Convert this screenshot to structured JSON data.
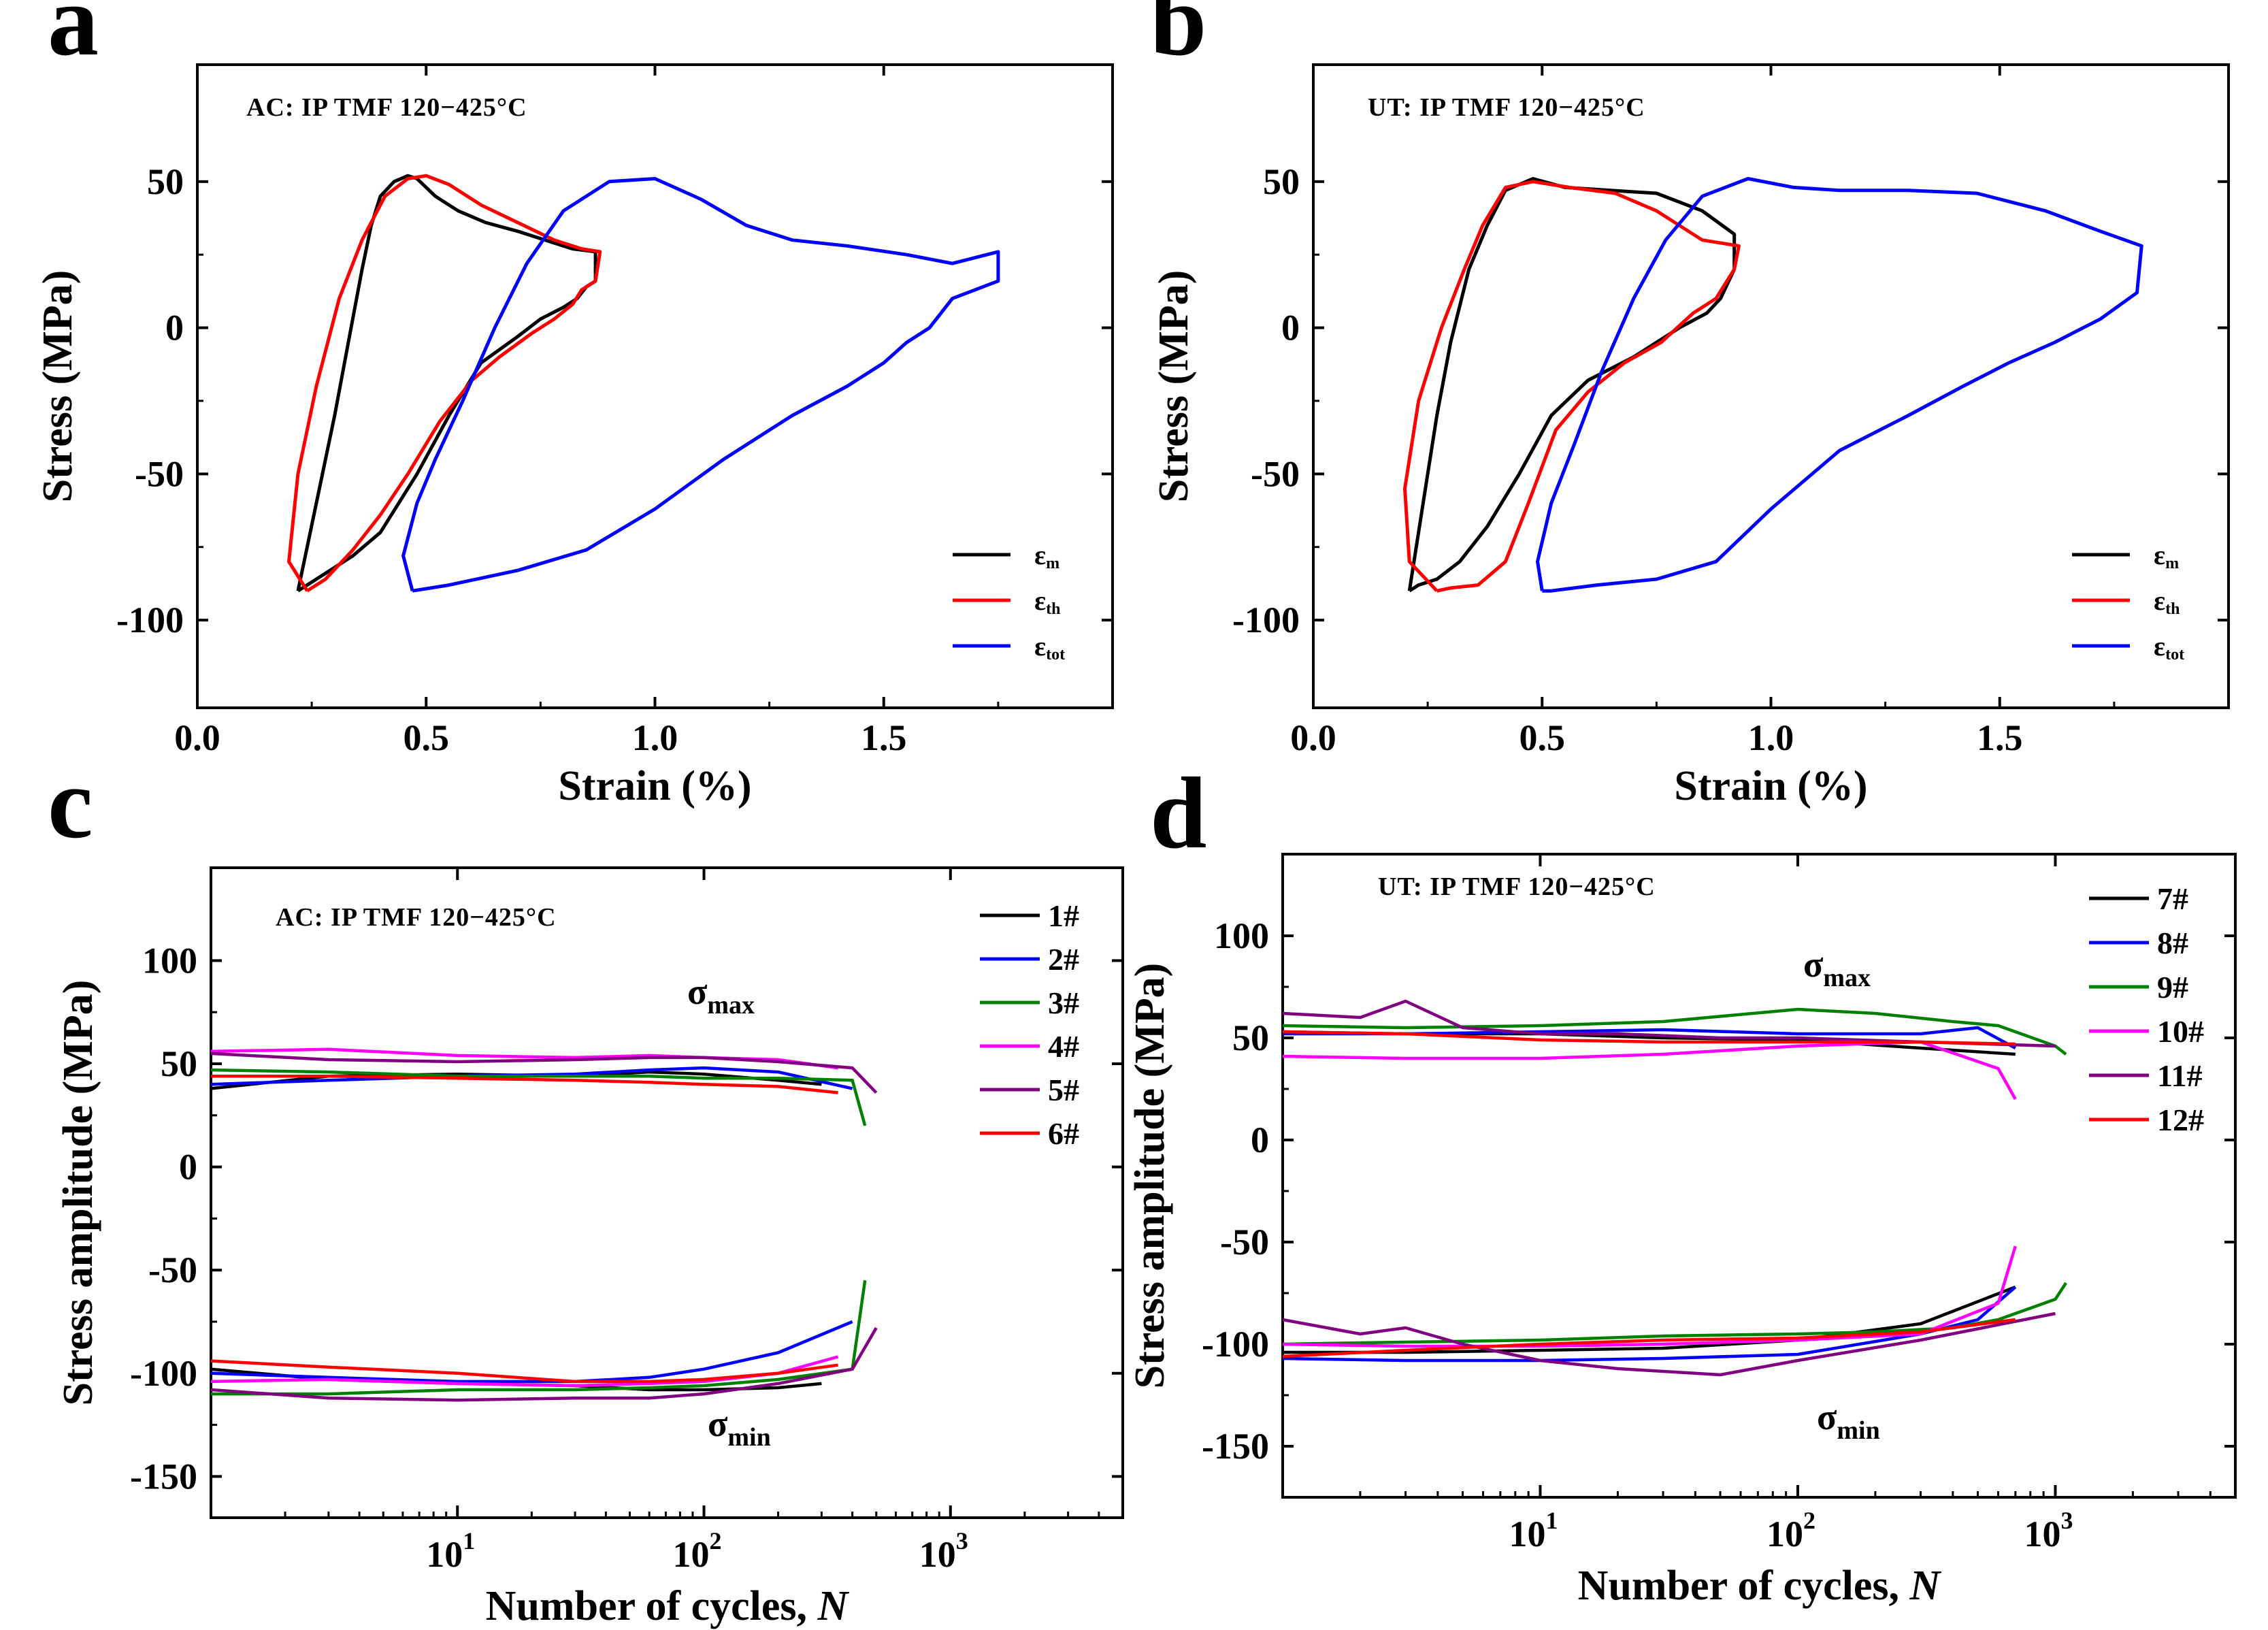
{
  "chart_data": [
    {
      "panel": "a",
      "type": "line",
      "annotation": "AC: IP TMF 120−425°C",
      "xlabel": "Strain (%)",
      "ylabel": "Stress (MPa)",
      "xlim": [
        0,
        2.0
      ],
      "ylim": [
        -130,
        90
      ],
      "xticks": [
        0.0,
        0.5,
        1.0,
        1.5
      ],
      "xtick_labels": [
        "0.0",
        "0.5",
        "1.0",
        "1.5"
      ],
      "yticks": [
        -100,
        -50,
        0,
        50
      ],
      "ytick_labels": [
        "-100",
        "-50",
        "0",
        "50"
      ],
      "legend": {
        "position": "bottom-right",
        "symbol": "ε"
      },
      "series": [
        {
          "name": "εm",
          "symbol": "ε",
          "sub": "m",
          "color": "#000000",
          "x": [
            0.22,
            0.26,
            0.3,
            0.33,
            0.36,
            0.38,
            0.4,
            0.43,
            0.46,
            0.48,
            0.52,
            0.57,
            0.63,
            0.7,
            0.76,
            0.82,
            0.87,
            0.87,
            0.85,
            0.83,
            0.8,
            0.75,
            0.7,
            0.62,
            0.55,
            0.48,
            0.4,
            0.34,
            0.28,
            0.24,
            0.22
          ],
          "y": [
            -90,
            -60,
            -30,
            -5,
            20,
            35,
            45,
            50,
            52,
            51,
            45,
            40,
            36,
            33,
            30,
            27,
            26,
            16,
            14,
            10,
            7,
            3,
            -3,
            -12,
            -30,
            -50,
            -70,
            -78,
            -84,
            -88,
            -90
          ]
        },
        {
          "name": "εth",
          "symbol": "ε",
          "sub": "th",
          "color": "#ff0000",
          "x": [
            0.24,
            0.2,
            0.22,
            0.26,
            0.31,
            0.36,
            0.41,
            0.46,
            0.5,
            0.55,
            0.62,
            0.7,
            0.78,
            0.84,
            0.88,
            0.87,
            0.84,
            0.82,
            0.78,
            0.73,
            0.66,
            0.6,
            0.53,
            0.46,
            0.4,
            0.34,
            0.28,
            0.24
          ],
          "y": [
            -90,
            -80,
            -50,
            -20,
            10,
            30,
            45,
            51,
            52,
            49,
            42,
            36,
            30,
            27,
            26,
            16,
            13,
            8,
            3,
            -2,
            -10,
            -18,
            -32,
            -50,
            -64,
            -76,
            -86,
            -90
          ]
        },
        {
          "name": "εtot",
          "symbol": "ε",
          "sub": "tot",
          "color": "#0000ff",
          "x": [
            0.47,
            0.45,
            0.48,
            0.52,
            0.58,
            0.65,
            0.72,
            0.8,
            0.9,
            1.0,
            1.1,
            1.2,
            1.3,
            1.42,
            1.55,
            1.65,
            1.75,
            1.75,
            1.65,
            1.6,
            1.55,
            1.5,
            1.42,
            1.3,
            1.15,
            1.0,
            0.85,
            0.7,
            0.55,
            0.47
          ],
          "y": [
            -90,
            -78,
            -60,
            -45,
            -25,
            0,
            22,
            40,
            50,
            51,
            44,
            35,
            30,
            28,
            25,
            22,
            26,
            16,
            10,
            0,
            -5,
            -12,
            -20,
            -30,
            -45,
            -62,
            -76,
            -83,
            -88,
            -90
          ]
        }
      ]
    },
    {
      "panel": "b",
      "type": "line",
      "annotation": "UT: IP TMF 120−425°C",
      "xlabel": "Strain (%)",
      "ylabel": "Stress (MPa)",
      "xlim": [
        0,
        2.0
      ],
      "ylim": [
        -130,
        90
      ],
      "xticks": [
        0.0,
        0.5,
        1.0,
        1.5
      ],
      "xtick_labels": [
        "0.0",
        "0.5",
        "1.0",
        "1.5"
      ],
      "yticks": [
        -100,
        -50,
        0,
        50
      ],
      "ytick_labels": [
        "-100",
        "-50",
        "0",
        "50"
      ],
      "legend": {
        "position": "bottom-right",
        "symbol": "ε"
      },
      "series": [
        {
          "name": "εm",
          "symbol": "ε",
          "sub": "m",
          "color": "#000000",
          "x": [
            0.21,
            0.24,
            0.27,
            0.3,
            0.34,
            0.38,
            0.42,
            0.48,
            0.55,
            0.65,
            0.75,
            0.85,
            0.92,
            0.92,
            0.89,
            0.86,
            0.8,
            0.7,
            0.6,
            0.52,
            0.45,
            0.38,
            0.32,
            0.27,
            0.23,
            0.21
          ],
          "y": [
            -90,
            -60,
            -30,
            -5,
            20,
            35,
            47,
            51,
            48,
            47,
            46,
            40,
            32,
            20,
            10,
            5,
            0,
            -10,
            -18,
            -30,
            -50,
            -68,
            -80,
            -86,
            -88,
            -90
          ]
        },
        {
          "name": "εth",
          "symbol": "ε",
          "sub": "th",
          "color": "#ff0000",
          "x": [
            0.27,
            0.21,
            0.2,
            0.23,
            0.28,
            0.33,
            0.37,
            0.42,
            0.48,
            0.56,
            0.66,
            0.75,
            0.85,
            0.93,
            0.92,
            0.88,
            0.83,
            0.76,
            0.68,
            0.6,
            0.53,
            0.47,
            0.42,
            0.36,
            0.3,
            0.27
          ],
          "y": [
            -90,
            -80,
            -55,
            -25,
            0,
            20,
            35,
            48,
            50,
            48,
            46,
            40,
            30,
            28,
            20,
            10,
            5,
            -5,
            -12,
            -22,
            -35,
            -60,
            -80,
            -88,
            -89,
            -90
          ]
        },
        {
          "name": "εtot",
          "symbol": "ε",
          "sub": "tot",
          "color": "#0000ff",
          "x": [
            0.5,
            0.49,
            0.52,
            0.57,
            0.63,
            0.7,
            0.77,
            0.85,
            0.95,
            1.05,
            1.15,
            1.3,
            1.45,
            1.6,
            1.72,
            1.81,
            1.8,
            1.72,
            1.62,
            1.52,
            1.42,
            1.3,
            1.15,
            1.0,
            0.88,
            0.75,
            0.62,
            0.52,
            0.5
          ],
          "y": [
            -90,
            -80,
            -60,
            -40,
            -15,
            10,
            30,
            45,
            51,
            48,
            47,
            47,
            46,
            40,
            33,
            28,
            12,
            3,
            -5,
            -12,
            -20,
            -30,
            -42,
            -62,
            -80,
            -86,
            -88,
            -90,
            -90
          ]
        }
      ]
    },
    {
      "panel": "c",
      "type": "line",
      "annotation": "AC: IP TMF 120−425°C",
      "xlabel": "Number of cycles, N",
      "ylabel": "Stress amplitude (MPa)",
      "xscale": "log",
      "xlim": [
        1,
        5000
      ],
      "ylim": [
        -170,
        145
      ],
      "xtick_labels": [
        "10",
        "10",
        "10"
      ],
      "xtick_exponents": [
        "1",
        "2",
        "3"
      ],
      "yticks": [
        -150,
        -100,
        -50,
        0,
        50,
        100
      ],
      "ytick_labels": [
        "-150",
        "-100",
        "-50",
        "0",
        "50",
        "100"
      ],
      "sigma_max_label": {
        "symbol": "σ",
        "sub": "max"
      },
      "sigma_min_label": {
        "symbol": "σ",
        "sub": "min"
      },
      "legend": {
        "position": "top-right"
      },
      "series": [
        {
          "name": "1#",
          "color": "#000000",
          "x": [
            1,
            3,
            10,
            30,
            60,
            100,
            200,
            300
          ],
          "max": [
            38,
            44,
            45,
            44,
            46,
            45,
            42,
            40
          ],
          "min": [
            -98,
            -103,
            -105,
            -106,
            -108,
            -108,
            -107,
            -105
          ]
        },
        {
          "name": "2#",
          "color": "#0000ff",
          "x": [
            1,
            3,
            10,
            30,
            60,
            100,
            200,
            400
          ],
          "max": [
            40,
            42,
            44,
            45,
            47,
            48,
            46,
            38
          ],
          "min": [
            -100,
            -102,
            -104,
            -104,
            -102,
            -98,
            -90,
            -75
          ]
        },
        {
          "name": "3#",
          "color": "#008000",
          "x": [
            1,
            3,
            10,
            30,
            60,
            100,
            200,
            400,
            450
          ],
          "max": [
            47,
            46,
            44,
            44,
            44,
            43,
            43,
            42,
            20
          ],
          "min": [
            -110,
            -110,
            -108,
            -108,
            -107,
            -106,
            -103,
            -98,
            -55
          ]
        },
        {
          "name": "4#",
          "color": "#ff00ff",
          "x": [
            1,
            3,
            10,
            30,
            60,
            100,
            200,
            350
          ],
          "max": [
            56,
            57,
            54,
            53,
            54,
            53,
            52,
            48
          ],
          "min": [
            -104,
            -103,
            -105,
            -106,
            -105,
            -104,
            -100,
            -92
          ]
        },
        {
          "name": "5#",
          "color": "#800080",
          "x": [
            1,
            3,
            10,
            30,
            60,
            100,
            200,
            400,
            500
          ],
          "max": [
            55,
            52,
            51,
            52,
            53,
            53,
            51,
            48,
            36
          ],
          "min": [
            -108,
            -112,
            -113,
            -112,
            -112,
            -110,
            -105,
            -98,
            -78
          ]
        },
        {
          "name": "6#",
          "color": "#ff0000",
          "x": [
            1,
            3,
            10,
            30,
            60,
            100,
            200,
            350
          ],
          "max": [
            44,
            44,
            43,
            42,
            41,
            40,
            39,
            36
          ],
          "min": [
            -94,
            -97,
            -100,
            -104,
            -104,
            -103,
            -100,
            -96
          ]
        }
      ]
    },
    {
      "panel": "d",
      "type": "line",
      "annotation": "UT: IP TMF 120−425°C",
      "xlabel": "Number of cycles, N",
      "ylabel": "Stress amplitude (MPa)",
      "xscale": "log",
      "xlim": [
        1,
        5000
      ],
      "ylim": [
        -175,
        140
      ],
      "xtick_labels": [
        "10",
        "10",
        "10"
      ],
      "xtick_exponents": [
        "1",
        "2",
        "3"
      ],
      "yticks": [
        -150,
        -100,
        -50,
        0,
        50,
        100
      ],
      "ytick_labels": [
        "-150",
        "-100",
        "-50",
        "0",
        "50",
        "100"
      ],
      "sigma_max_label": {
        "symbol": "σ",
        "sub": "max"
      },
      "sigma_min_label": {
        "symbol": "σ",
        "sub": "min"
      },
      "legend": {
        "position": "top-right"
      },
      "series": [
        {
          "name": "7#",
          "color": "#000000",
          "x": [
            1,
            3,
            10,
            30,
            100,
            300,
            700
          ],
          "max": [
            53,
            52,
            52,
            50,
            49,
            45,
            42
          ],
          "min": [
            -104,
            -104,
            -103,
            -102,
            -98,
            -90,
            -72
          ]
        },
        {
          "name": "8#",
          "color": "#0000ff",
          "x": [
            1,
            3,
            10,
            30,
            100,
            300,
            500,
            700
          ],
          "max": [
            52,
            52,
            53,
            54,
            52,
            52,
            55,
            45
          ],
          "min": [
            -107,
            -108,
            -108,
            -107,
            -105,
            -95,
            -88,
            -72
          ]
        },
        {
          "name": "9#",
          "color": "#008000",
          "x": [
            1,
            3,
            10,
            30,
            100,
            200,
            400,
            600,
            1000,
            1100
          ],
          "max": [
            56,
            55,
            56,
            58,
            64,
            62,
            58,
            56,
            46,
            42
          ],
          "min": [
            -100,
            -99,
            -98,
            -96,
            -95,
            -94,
            -92,
            -88,
            -78,
            -70
          ]
        },
        {
          "name": "10#",
          "color": "#ff00ff",
          "x": [
            1,
            3,
            10,
            30,
            100,
            300,
            600,
            700
          ],
          "max": [
            41,
            40,
            40,
            42,
            46,
            48,
            35,
            20
          ],
          "min": [
            -100,
            -101,
            -101,
            -100,
            -98,
            -95,
            -80,
            -52
          ]
        },
        {
          "name": "11#",
          "color": "#800080",
          "x": [
            1,
            2,
            3,
            5,
            10,
            20,
            50,
            100,
            300,
            1000
          ],
          "max": [
            62,
            60,
            68,
            55,
            52,
            52,
            50,
            50,
            48,
            46
          ],
          "min": [
            -88,
            -95,
            -92,
            -100,
            -108,
            -112,
            -115,
            -108,
            -98,
            -85
          ]
        },
        {
          "name": "12#",
          "color": "#ff0000",
          "x": [
            1,
            3,
            10,
            30,
            100,
            300,
            700
          ],
          "max": [
            53,
            52,
            49,
            48,
            48,
            48,
            47
          ],
          "min": [
            -106,
            -103,
            -100,
            -98,
            -97,
            -94,
            -88
          ]
        }
      ]
    }
  ]
}
